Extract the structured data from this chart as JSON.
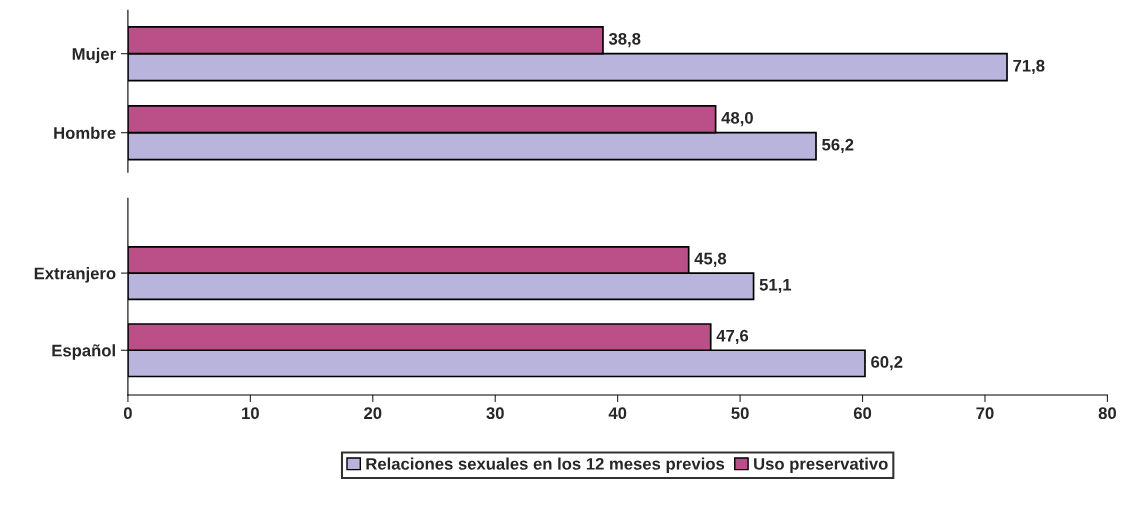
{
  "chart_data": [
    {
      "type": "bar",
      "orientation": "horizontal",
      "categories": [
        "Mujer",
        "Hombre"
      ],
      "xlim": [
        0,
        80
      ],
      "tick_labels": "y",
      "series": [
        {
          "color": "#b8b4dc",
          "values": [
            71.8,
            56.2
          ],
          "value_labels": [
            "71,8",
            "56,2"
          ]
        },
        {
          "color": "#bb4f87",
          "values": [
            38.8,
            48.0
          ],
          "value_labels": [
            "38,8",
            "48,0"
          ]
        }
      ]
    },
    {
      "type": "bar",
      "orientation": "horizontal",
      "categories": [
        "Extranjero",
        "Español"
      ],
      "xlim": [
        0,
        80
      ],
      "xticks": [
        0,
        10,
        20,
        30,
        40,
        50,
        60,
        70,
        80
      ],
      "legend": "bottom",
      "series": [
        {
          "name": "Relaciones sexuales en los 12 meses previos",
          "color": "#b8b4dc",
          "values": [
            51.1,
            60.2
          ],
          "value_labels": [
            "51,1",
            "60,2"
          ]
        },
        {
          "name": "Uso preservativo",
          "color": "#bb4f87",
          "values": [
            45.8,
            47.6
          ],
          "value_labels": [
            "45,8",
            "47,6"
          ]
        }
      ]
    }
  ]
}
